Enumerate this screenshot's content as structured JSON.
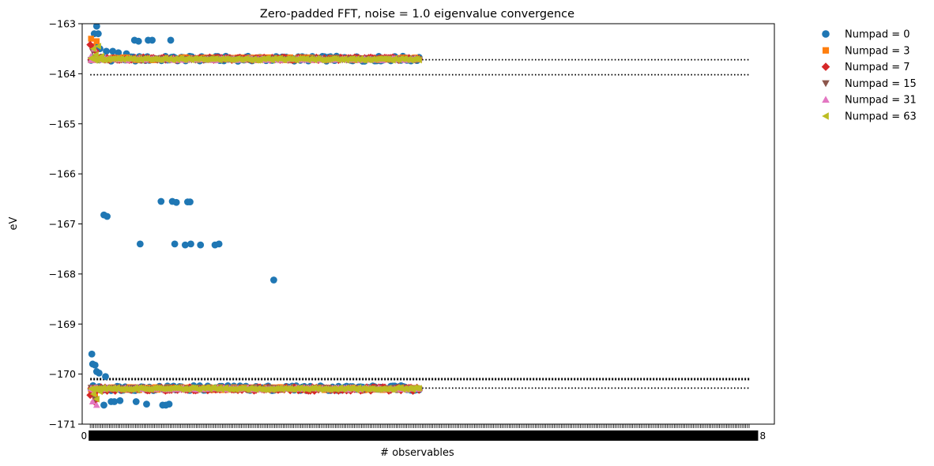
{
  "chart_data": {
    "type": "scatter",
    "title": "Zero-padded FFT, noise = 1.0 eigenvalue convergence",
    "xlabel": "# observables",
    "ylabel": "eV",
    "ylim": [
      -171,
      -163
    ],
    "yticks": [
      -171,
      -170,
      -169,
      -168,
      -167,
      -166,
      -165,
      -164,
      -163
    ],
    "xlim": [
      -10,
      850
    ],
    "xticks_visible": [
      "0",
      "8"
    ],
    "grid": false,
    "legend_placement": "outside-right",
    "reference_lines": [
      {
        "y": -163.72,
        "x_range": [
          0,
          820
        ],
        "style": "dotted"
      },
      {
        "y": -164.02,
        "x_range": [
          0,
          820
        ],
        "style": "dotted"
      },
      {
        "y": -170.1,
        "x_range": [
          0,
          820
        ],
        "style": "dotted-thick"
      },
      {
        "y": -170.28,
        "x_range": [
          0,
          820
        ],
        "style": "dotted"
      }
    ],
    "series": [
      {
        "name": "Numpad = 0",
        "marker": "circle",
        "color": "#1f77b4",
        "band_upper": {
          "x_range": [
            1,
            410
          ],
          "y": -163.7,
          "spread": 0.05
        },
        "band_lower": {
          "x_range": [
            1,
            410
          ],
          "y": -170.28,
          "spread": 0.05
        },
        "outliers": [
          {
            "x": 5,
            "y": -163.2
          },
          {
            "x": 8,
            "y": -163.05
          },
          {
            "x": 10,
            "y": -163.2
          },
          {
            "x": 7,
            "y": -163.45
          },
          {
            "x": 12,
            "y": -163.5
          },
          {
            "x": 20,
            "y": -163.55
          },
          {
            "x": 28,
            "y": -163.55
          },
          {
            "x": 35,
            "y": -163.58
          },
          {
            "x": 45,
            "y": -163.6
          },
          {
            "x": 55,
            "y": -163.33
          },
          {
            "x": 60,
            "y": -163.35
          },
          {
            "x": 72,
            "y": -163.33
          },
          {
            "x": 77,
            "y": -163.33
          },
          {
            "x": 100,
            "y": -163.33
          },
          {
            "x": 17,
            "y": -166.82
          },
          {
            "x": 21,
            "y": -166.85
          },
          {
            "x": 88,
            "y": -166.55
          },
          {
            "x": 102,
            "y": -166.55
          },
          {
            "x": 107,
            "y": -166.57
          },
          {
            "x": 121,
            "y": -166.56
          },
          {
            "x": 124,
            "y": -166.56
          },
          {
            "x": 62,
            "y": -167.4
          },
          {
            "x": 105,
            "y": -167.4
          },
          {
            "x": 118,
            "y": -167.42
          },
          {
            "x": 125,
            "y": -167.4
          },
          {
            "x": 137,
            "y": -167.42
          },
          {
            "x": 155,
            "y": -167.42
          },
          {
            "x": 160,
            "y": -167.4
          },
          {
            "x": 228,
            "y": -168.12
          },
          {
            "x": 2,
            "y": -169.6
          },
          {
            "x": 3,
            "y": -169.8
          },
          {
            "x": 6,
            "y": -169.82
          },
          {
            "x": 8,
            "y": -169.95
          },
          {
            "x": 11,
            "y": -169.98
          },
          {
            "x": 19,
            "y": -170.05
          },
          {
            "x": 17,
            "y": -170.62
          },
          {
            "x": 26,
            "y": -170.55
          },
          {
            "x": 30,
            "y": -170.55
          },
          {
            "x": 37,
            "y": -170.53
          },
          {
            "x": 57,
            "y": -170.55
          },
          {
            "x": 70,
            "y": -170.6
          },
          {
            "x": 90,
            "y": -170.62
          },
          {
            "x": 94,
            "y": -170.62
          },
          {
            "x": 98,
            "y": -170.6
          }
        ]
      },
      {
        "name": "Numpad = 3",
        "marker": "square",
        "color": "#ff7f0e",
        "band_upper": {
          "x_range": [
            1,
            410
          ],
          "y": -163.7,
          "spread": 0.03
        },
        "band_lower": {
          "x_range": [
            1,
            410
          ],
          "y": -170.29,
          "spread": 0.03
        },
        "outliers": [
          {
            "x": 1,
            "y": -163.3
          },
          {
            "x": 3,
            "y": -163.45
          },
          {
            "x": 8,
            "y": -163.35
          },
          {
            "x": 2,
            "y": -170.3
          },
          {
            "x": 6,
            "y": -170.45
          }
        ]
      },
      {
        "name": "Numpad = 7",
        "marker": "diamond",
        "color": "#d62728",
        "band_upper": {
          "x_range": [
            1,
            410
          ],
          "y": -163.7,
          "spread": 0.03
        },
        "band_lower": {
          "x_range": [
            1,
            410
          ],
          "y": -170.3,
          "spread": 0.04
        },
        "outliers": [
          {
            "x": 0,
            "y": -163.42
          },
          {
            "x": 4,
            "y": -163.5
          },
          {
            "x": 7,
            "y": -163.55
          },
          {
            "x": 0,
            "y": -170.42
          },
          {
            "x": 5,
            "y": -170.55
          }
        ]
      },
      {
        "name": "Numpad = 15",
        "marker": "triangle-down",
        "color": "#8c564b",
        "band_upper": {
          "x_range": [
            1,
            410
          ],
          "y": -163.71,
          "spread": 0.02
        },
        "band_lower": {
          "x_range": [
            1,
            410
          ],
          "y": -170.29,
          "spread": 0.02
        },
        "outliers": [
          {
            "x": 3,
            "y": -163.55
          },
          {
            "x": 6,
            "y": -170.5
          }
        ]
      },
      {
        "name": "Numpad = 31",
        "marker": "triangle-up",
        "color": "#e377c2",
        "band_upper": {
          "x_range": [
            1,
            410
          ],
          "y": -163.71,
          "spread": 0.02
        },
        "band_lower": {
          "x_range": [
            1,
            410
          ],
          "y": -170.29,
          "spread": 0.02
        },
        "outliers": [
          {
            "x": 1,
            "y": -163.65
          },
          {
            "x": 5,
            "y": -163.5
          },
          {
            "x": 3,
            "y": -170.55
          },
          {
            "x": 8,
            "y": -170.62
          }
        ]
      },
      {
        "name": "Numpad = 63",
        "marker": "triangle-left",
        "color": "#bcbd22",
        "band_upper": {
          "x_range": [
            1,
            410
          ],
          "y": -163.71,
          "spread": 0.02
        },
        "band_lower": {
          "x_range": [
            1,
            410
          ],
          "y": -170.29,
          "spread": 0.02
        },
        "outliers": [
          {
            "x": 4,
            "y": -163.5
          },
          {
            "x": 7,
            "y": -163.62
          },
          {
            "x": 10,
            "y": -163.45
          },
          {
            "x": 14,
            "y": -163.65
          },
          {
            "x": 22,
            "y": -163.72
          },
          {
            "x": 4,
            "y": -170.4
          },
          {
            "x": 8,
            "y": -170.5
          },
          {
            "x": 12,
            "y": -170.35
          }
        ]
      }
    ]
  }
}
